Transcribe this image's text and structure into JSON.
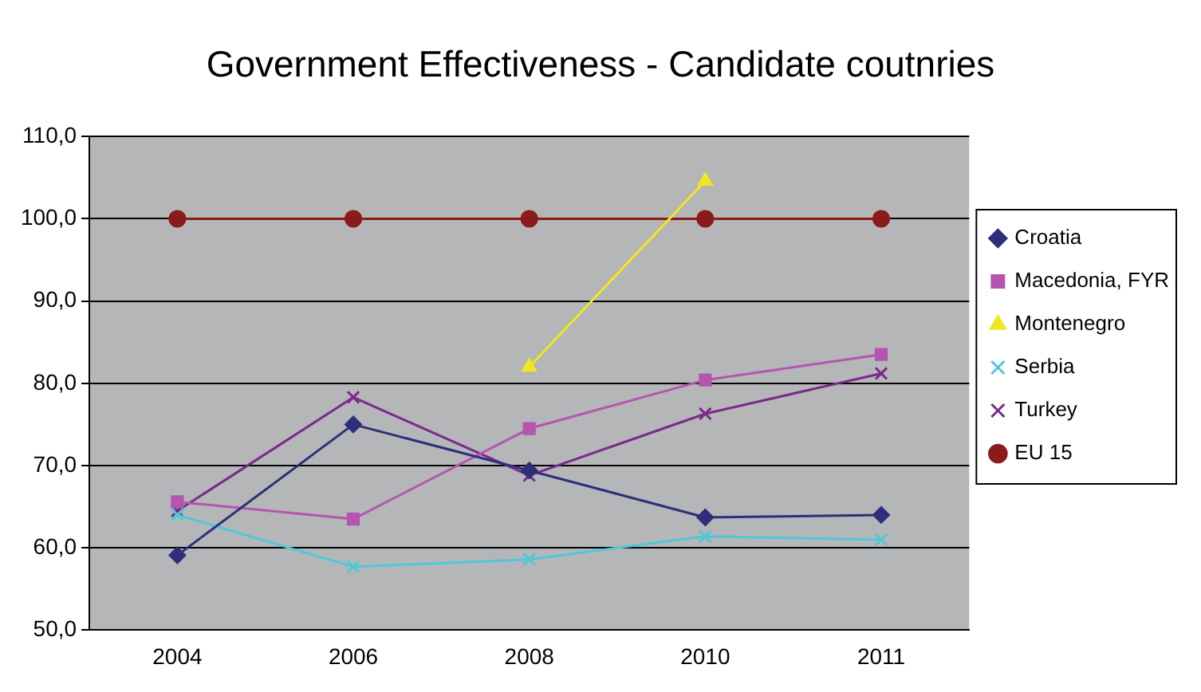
{
  "chart_data": {
    "type": "line",
    "title": "Government Effectiveness - Candidate coutnries",
    "categories": [
      "2004",
      "2006",
      "2008",
      "2010",
      "2011"
    ],
    "series": [
      {
        "name": "Croatia",
        "color": "#2e2e7a",
        "marker": "diamond",
        "values": [
          59.1,
          75.0,
          69.4,
          63.7,
          64.0
        ]
      },
      {
        "name": "Macedonia, FYR",
        "color": "#b555b0",
        "marker": "square",
        "values": [
          65.6,
          63.5,
          74.5,
          80.4,
          83.5
        ]
      },
      {
        "name": "Montenegro",
        "color": "#f0e81e",
        "marker": "triangle",
        "values": [
          null,
          null,
          82.0,
          104.6,
          null
        ]
      },
      {
        "name": "Serbia",
        "color": "#4ec8d8",
        "marker": "cross",
        "values": [
          64.0,
          57.7,
          58.6,
          61.4,
          61.0
        ]
      },
      {
        "name": "Turkey",
        "color": "#7a2a8a",
        "marker": "cross",
        "values": [
          64.5,
          78.3,
          68.8,
          76.3,
          81.2
        ]
      },
      {
        "name": "EU 15",
        "color": "#8b1a1a",
        "marker": "circle",
        "values": [
          100,
          100,
          100,
          100,
          100
        ]
      }
    ],
    "ylim": [
      50,
      110
    ],
    "yticks": [
      {
        "value": 50,
        "label": "50,0"
      },
      {
        "value": 60,
        "label": "60,0"
      },
      {
        "value": 70,
        "label": "70,0"
      },
      {
        "value": 80,
        "label": "80,0"
      },
      {
        "value": 90,
        "label": "90,0"
      },
      {
        "value": 100,
        "label": "100,0"
      },
      {
        "value": 110,
        "label": "110,0"
      }
    ],
    "grid": "y",
    "legend": "right",
    "line_style": "solid"
  }
}
